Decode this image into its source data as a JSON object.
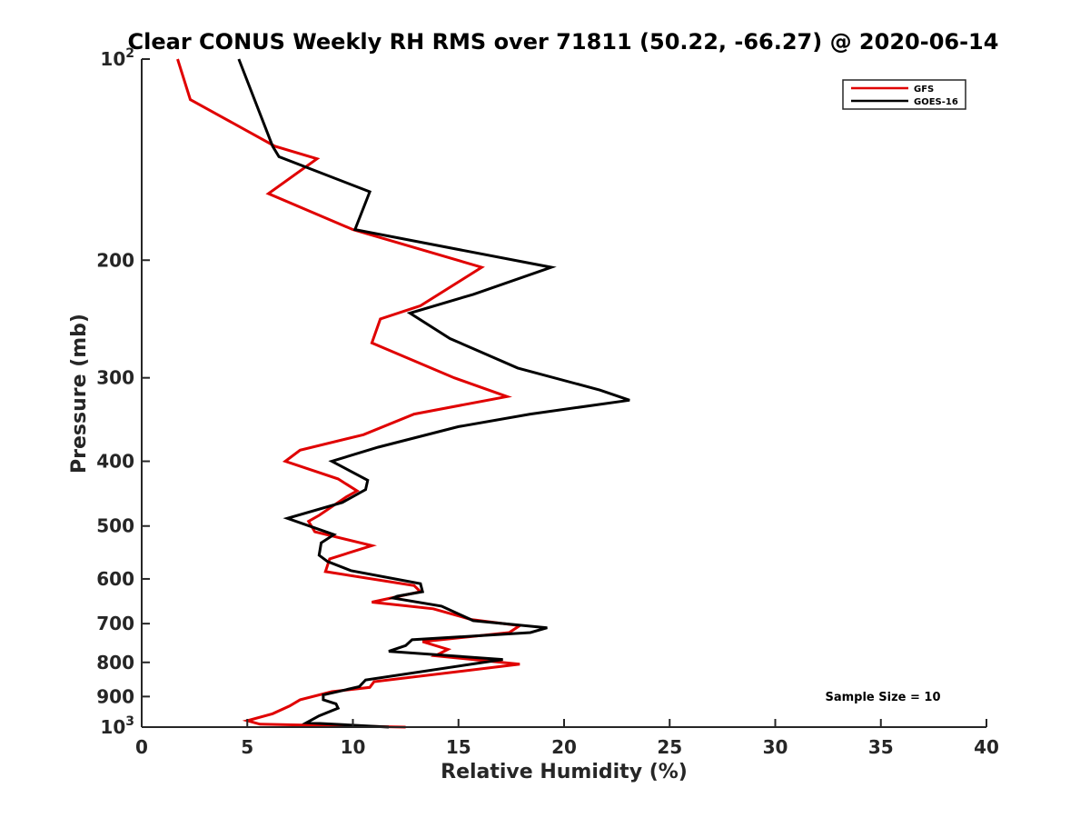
{
  "chart_data": {
    "type": "line",
    "title": "Clear CONUS Weekly RH RMS over 71811 (50.22, -66.27) @ 2020-06-14",
    "xlabel": "Relative Humidity (%)",
    "ylabel": "Pressure (mb)",
    "xlim": [
      0,
      40
    ],
    "ylim": [
      100,
      1000
    ],
    "yscale": "log",
    "y_reversed": true,
    "x_ticks": [
      "0",
      "5",
      "10",
      "15",
      "20",
      "25",
      "30",
      "35",
      "40"
    ],
    "y_ticks": [
      {
        "value": 100,
        "base": "10",
        "exp": "2"
      },
      {
        "value": 200,
        "label": "200"
      },
      {
        "value": 300,
        "label": "300"
      },
      {
        "value": 400,
        "label": "400"
      },
      {
        "value": 500,
        "label": "500"
      },
      {
        "value": 600,
        "label": "600"
      },
      {
        "value": 700,
        "label": "700"
      },
      {
        "value": 800,
        "label": "800"
      },
      {
        "value": 900,
        "label": "900"
      },
      {
        "value": 1000,
        "base": "10",
        "exp": "3"
      }
    ],
    "grid": false,
    "legend_position": "top-right",
    "annotation": "Sample Size = 10",
    "series": [
      {
        "name": "GFS",
        "color": "#e00000",
        "points": [
          [
            1.7,
            100
          ],
          [
            2.3,
            115
          ],
          [
            6.3,
            135
          ],
          [
            8.3,
            141
          ],
          [
            6.0,
            159
          ],
          [
            10.0,
            180
          ],
          [
            16.1,
            205
          ],
          [
            13.2,
            234
          ],
          [
            11.3,
            245
          ],
          [
            10.9,
            266
          ],
          [
            14.8,
            300
          ],
          [
            17.3,
            320
          ],
          [
            12.9,
            340
          ],
          [
            10.5,
            365
          ],
          [
            7.5,
            385
          ],
          [
            6.8,
            400
          ],
          [
            9.3,
            425
          ],
          [
            10.2,
            443
          ],
          [
            9.7,
            452
          ],
          [
            8.4,
            482
          ],
          [
            7.9,
            492
          ],
          [
            8.2,
            510
          ],
          [
            10.9,
            535
          ],
          [
            8.9,
            560
          ],
          [
            8.7,
            585
          ],
          [
            12.9,
            614
          ],
          [
            13.2,
            627
          ],
          [
            10.9,
            650
          ],
          [
            13.8,
            665
          ],
          [
            15.6,
            690
          ],
          [
            17.9,
            705
          ],
          [
            17.4,
            722
          ],
          [
            13.3,
            745
          ],
          [
            14.5,
            765
          ],
          [
            13.9,
            782
          ],
          [
            17.9,
            805
          ],
          [
            11.0,
            855
          ],
          [
            10.8,
            872
          ],
          [
            9.0,
            885
          ],
          [
            7.5,
            910
          ],
          [
            7.0,
            930
          ],
          [
            6.2,
            955
          ],
          [
            5.0,
            978
          ],
          [
            5.6,
            990
          ],
          [
            12.5,
            1000
          ]
        ]
      },
      {
        "name": "GOES-16",
        "color": "#000000",
        "points": [
          [
            4.6,
            100
          ],
          [
            6.2,
            135
          ],
          [
            6.5,
            140
          ],
          [
            10.8,
            158
          ],
          [
            10.1,
            180
          ],
          [
            19.4,
            205
          ],
          [
            15.7,
            225
          ],
          [
            12.7,
            240
          ],
          [
            14.6,
            262
          ],
          [
            17.8,
            290
          ],
          [
            21.7,
            313
          ],
          [
            23.1,
            324
          ],
          [
            18.4,
            340
          ],
          [
            15.0,
            355
          ],
          [
            11.2,
            381
          ],
          [
            9.0,
            400
          ],
          [
            10.7,
            427
          ],
          [
            10.6,
            441
          ],
          [
            9.5,
            461
          ],
          [
            6.9,
            487
          ],
          [
            9.1,
            515
          ],
          [
            8.5,
            530
          ],
          [
            8.4,
            553
          ],
          [
            8.8,
            565
          ],
          [
            9.9,
            583
          ],
          [
            13.2,
            610
          ],
          [
            13.3,
            627
          ],
          [
            12.1,
            637
          ],
          [
            11.9,
            641
          ],
          [
            14.2,
            659
          ],
          [
            15.7,
            693
          ],
          [
            19.2,
            710
          ],
          [
            18.4,
            722
          ],
          [
            12.8,
            740
          ],
          [
            12.5,
            755
          ],
          [
            11.7,
            770
          ],
          [
            17.1,
            792
          ],
          [
            10.6,
            850
          ],
          [
            10.3,
            870
          ],
          [
            8.6,
            895
          ],
          [
            8.6,
            910
          ],
          [
            9.2,
            923
          ],
          [
            9.3,
            937
          ],
          [
            8.4,
            962
          ],
          [
            7.8,
            985
          ],
          [
            11.7,
            1000
          ]
        ]
      }
    ]
  }
}
